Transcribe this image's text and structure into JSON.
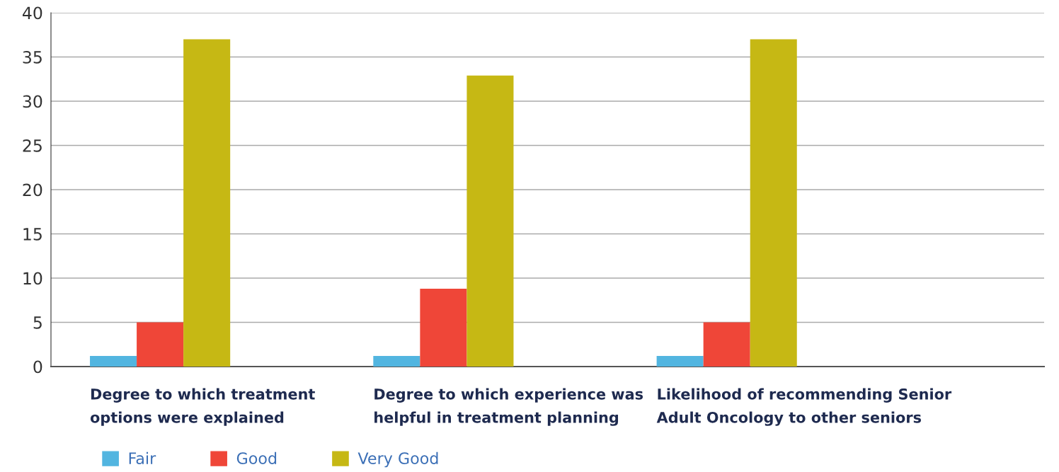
{
  "chart_data": {
    "type": "bar",
    "categories": [
      "Degree to which treatment\noptions were explained",
      "Degree to which experience was\nhelpful in treatment planning",
      "Likelihood of recommending Senior\nAdult Oncology to other seniors"
    ],
    "series": [
      {
        "name": "Fair",
        "color": "#52b5e0",
        "values": [
          1.2,
          1.2,
          1.2
        ]
      },
      {
        "name": "Good",
        "color": "#ef4638",
        "values": [
          5.0,
          8.8,
          5.0
        ]
      },
      {
        "name": "Very Good",
        "color": "#c6b814",
        "values": [
          37.0,
          32.9,
          37.0
        ]
      }
    ],
    "ylim": [
      0,
      40
    ],
    "yticks": [
      0,
      5,
      10,
      15,
      20,
      25,
      30,
      35,
      40
    ],
    "grid": "y",
    "legend": "bottom left"
  }
}
